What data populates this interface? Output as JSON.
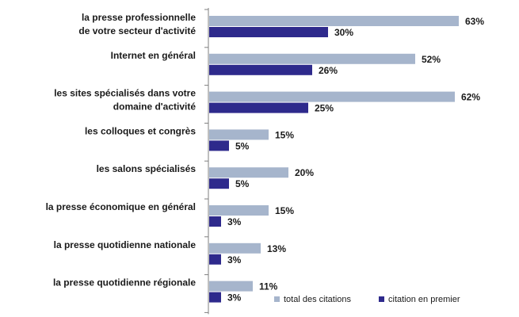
{
  "chart_data": {
    "type": "bar",
    "orientation": "horizontal",
    "categories": [
      "la presse professionnelle de votre secteur d'activité",
      "Internet en général",
      "les sites spécialisés dans votre domaine d'activité",
      "les colloques et congrès",
      "les salons spécialisés",
      "la presse économique en général",
      "la presse quotidienne nationale",
      "la presse quotidienne régionale"
    ],
    "category_lines": [
      [
        "la presse professionnelle",
        "de votre secteur d'activité"
      ],
      [
        "Internet en général"
      ],
      [
        "les sites spécialisés dans votre",
        "domaine d'activité"
      ],
      [
        "les colloques et congrès"
      ],
      [
        "les salons spécialisés"
      ],
      [
        "la presse économique en général"
      ],
      [
        "la presse quotidienne nationale"
      ],
      [
        "la presse quotidienne régionale"
      ]
    ],
    "series": [
      {
        "name": "total des citations",
        "color": "#a6b5cc",
        "values": [
          63,
          52,
          62,
          15,
          20,
          15,
          13,
          11
        ],
        "labels": [
          "63%",
          "52%",
          "62%",
          "15%",
          "20%",
          "15%",
          "13%",
          "11%"
        ]
      },
      {
        "name": "citation en premier",
        "color": "#2e2a8c",
        "values": [
          30,
          26,
          25,
          5,
          5,
          3,
          3,
          3
        ],
        "labels": [
          "30%",
          "26%",
          "25%",
          "5%",
          "5%",
          "3%",
          "3%",
          "3%"
        ]
      }
    ],
    "xlim": [
      0,
      63
    ],
    "grid": false,
    "legend_position": "bottom-right",
    "axis_color": "#7f7f7f"
  }
}
